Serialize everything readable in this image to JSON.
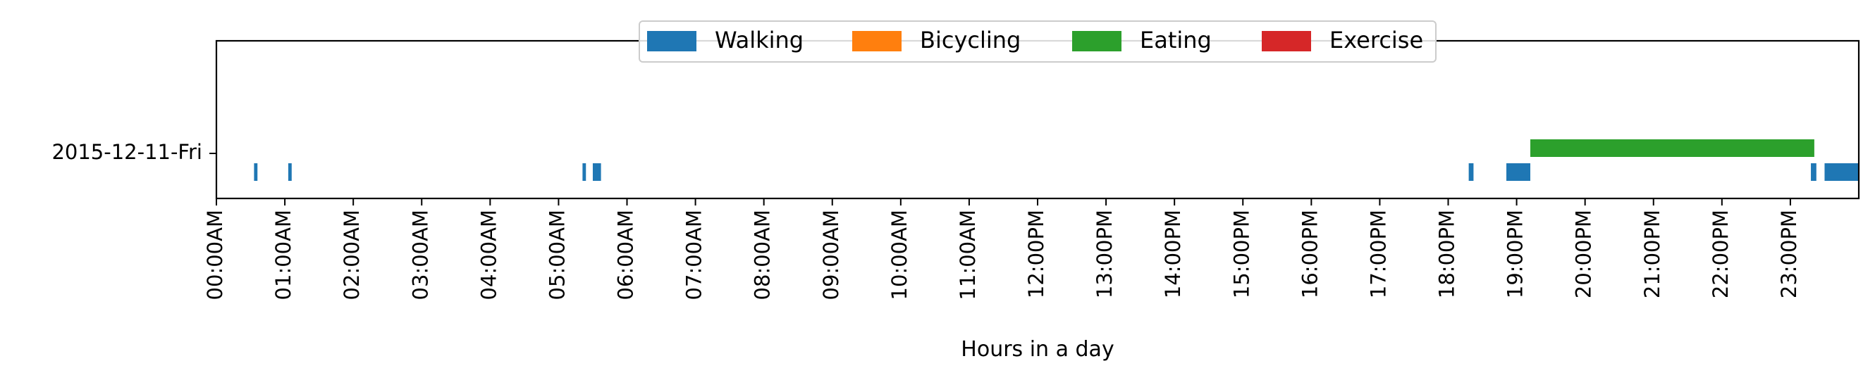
{
  "chart_data": {
    "type": "timeline",
    "xlabel": "Hours in a day",
    "xlim": [
      0,
      24
    ],
    "x_ticks": [
      {
        "value": 0,
        "label": "00:00AM"
      },
      {
        "value": 1,
        "label": "01:00AM"
      },
      {
        "value": 2,
        "label": "02:00AM"
      },
      {
        "value": 3,
        "label": "03:00AM"
      },
      {
        "value": 4,
        "label": "04:00AM"
      },
      {
        "value": 5,
        "label": "05:00AM"
      },
      {
        "value": 6,
        "label": "06:00AM"
      },
      {
        "value": 7,
        "label": "07:00AM"
      },
      {
        "value": 8,
        "label": "08:00AM"
      },
      {
        "value": 9,
        "label": "09:00AM"
      },
      {
        "value": 10,
        "label": "10:00AM"
      },
      {
        "value": 11,
        "label": "11:00AM"
      },
      {
        "value": 12,
        "label": "12:00PM"
      },
      {
        "value": 13,
        "label": "13:00PM"
      },
      {
        "value": 14,
        "label": "14:00PM"
      },
      {
        "value": 15,
        "label": "15:00PM"
      },
      {
        "value": 16,
        "label": "16:00PM"
      },
      {
        "value": 17,
        "label": "17:00PM"
      },
      {
        "value": 18,
        "label": "18:00PM"
      },
      {
        "value": 19,
        "label": "19:00PM"
      },
      {
        "value": 20,
        "label": "20:00PM"
      },
      {
        "value": 21,
        "label": "21:00PM"
      },
      {
        "value": 22,
        "label": "22:00PM"
      },
      {
        "value": 23,
        "label": "23:00PM"
      }
    ],
    "rows": [
      "2015-12-11-Fri"
    ],
    "legend": {
      "placement": "top-center",
      "entries": [
        {
          "name": "Walking",
          "color": "#1f77b4"
        },
        {
          "name": "Bicycling",
          "color": "#ff7f0e"
        },
        {
          "name": "Eating",
          "color": "#2ca02c"
        },
        {
          "name": "Exercise",
          "color": "#d62728"
        }
      ]
    },
    "series": [
      {
        "name": "Walking",
        "color": "#1f77b4",
        "segments": [
          {
            "row": "2015-12-11-Fri",
            "start": 0.55,
            "end": 0.6
          },
          {
            "row": "2015-12-11-Fri",
            "start": 1.05,
            "end": 1.1
          },
          {
            "row": "2015-12-11-Fri",
            "start": 5.35,
            "end": 5.4
          },
          {
            "row": "2015-12-11-Fri",
            "start": 5.5,
            "end": 5.62
          },
          {
            "row": "2015-12-11-Fri",
            "start": 18.3,
            "end": 18.37
          },
          {
            "row": "2015-12-11-Fri",
            "start": 18.85,
            "end": 19.2
          },
          {
            "row": "2015-12-11-Fri",
            "start": 23.3,
            "end": 23.38
          },
          {
            "row": "2015-12-11-Fri",
            "start": 23.5,
            "end": 24.0
          }
        ]
      },
      {
        "name": "Bicycling",
        "color": "#ff7f0e",
        "segments": []
      },
      {
        "name": "Eating",
        "color": "#2ca02c",
        "segments": [
          {
            "row": "2015-12-11-Fri",
            "start": 19.2,
            "end": 23.35
          }
        ]
      },
      {
        "name": "Exercise",
        "color": "#d62728",
        "segments": []
      }
    ]
  }
}
